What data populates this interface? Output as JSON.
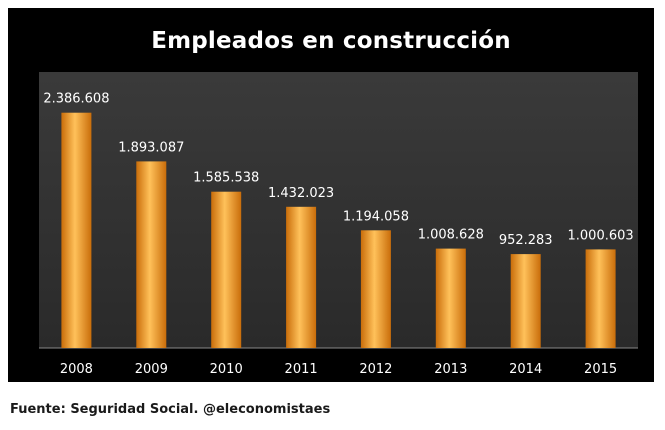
{
  "colors": {
    "panel_background": "#000000",
    "plot_background_top": "#3a3a3a",
    "plot_background_bottom": "#2a2a2a",
    "bar_fill": "#f59a1e",
    "bar_highlight": "#ffc15a",
    "bar_shade": "#c96d0a",
    "text": "#ffffff"
  },
  "chart_data": {
    "type": "bar",
    "title": "Empleados en construcción",
    "categories": [
      "2008",
      "2009",
      "2010",
      "2011",
      "2012",
      "2013",
      "2014",
      "2015"
    ],
    "values": [
      2386608,
      1893087,
      1585538,
      1432023,
      1194058,
      1008628,
      952283,
      1000603
    ],
    "data_labels": [
      "2.386.608",
      "1.893.087",
      "1.585.538",
      "1.432.023",
      "1.194.058",
      "1.008.628",
      "952.283",
      "1.000.603"
    ],
    "ylim": [
      0,
      2800000
    ],
    "grid": false,
    "legend": "none"
  },
  "source": "Fuente: Seguridad Social. @eleconomistaes"
}
